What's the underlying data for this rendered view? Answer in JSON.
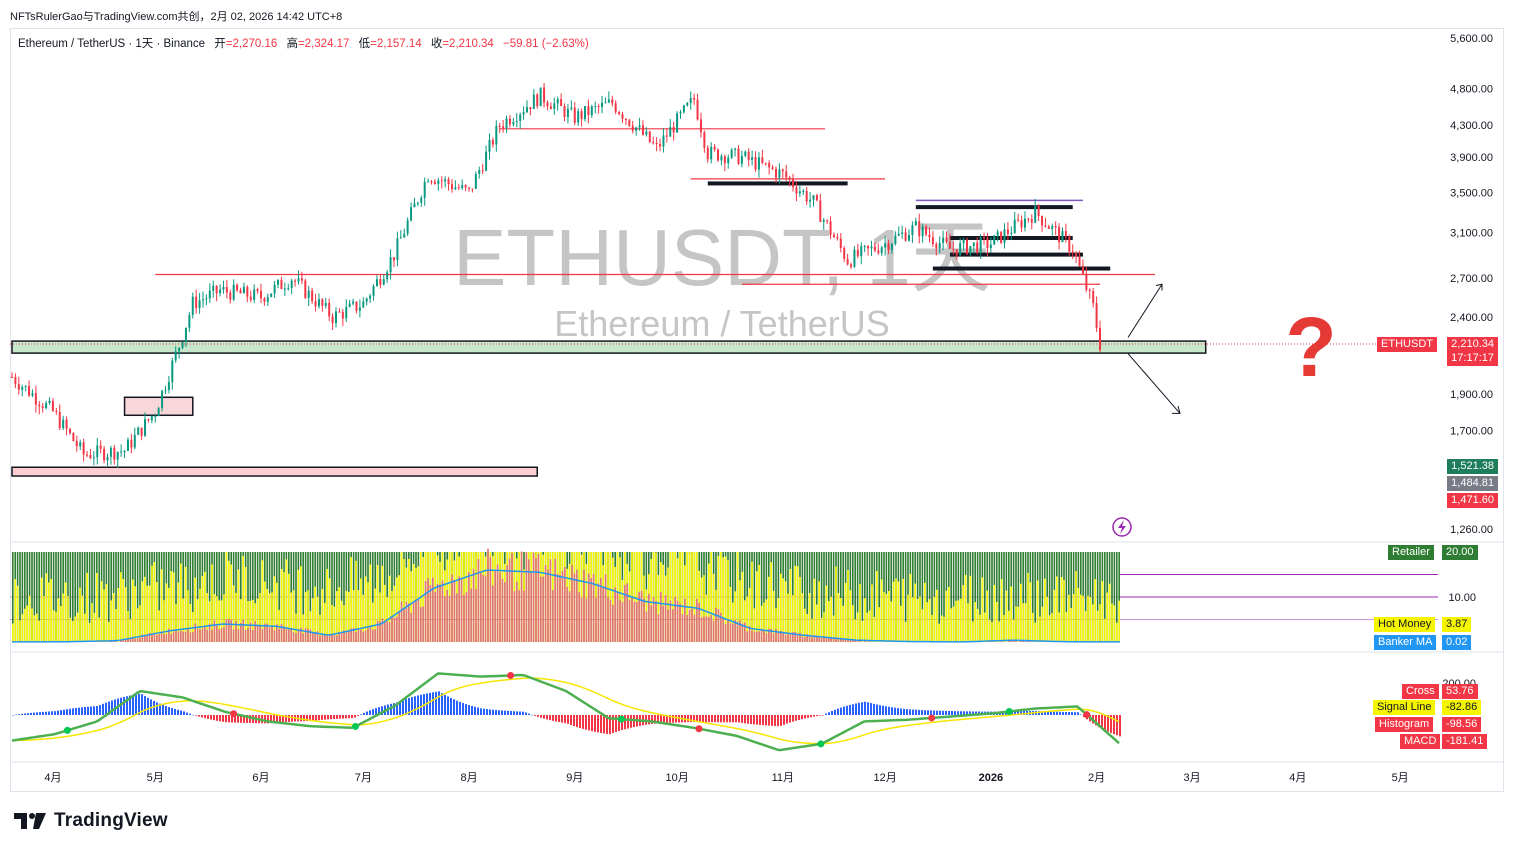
{
  "caption": "NFTsRulerGao与TradingView.com共创，2月 02, 2026 14:42 UTC+8",
  "legend": {
    "symbol": "Ethereum / TetherUS · 1天 · Binance",
    "open_label": "开",
    "open": "=2,270.16",
    "high_label": "高",
    "high": "=2,324.17",
    "low_label": "低",
    "low": "=2,157.14",
    "close_label": "收",
    "close": "=2,210.34",
    "change": "−59.81 (−2.63%)"
  },
  "watermark": {
    "main": "ETHUSDT, 1天",
    "sub": "Ethereum / TetherUS"
  },
  "brand": "TradingView",
  "colors": {
    "up": "#089981",
    "down": "#f23645",
    "zone_green": "#c8e6c9",
    "zone_red": "#ffcdd2",
    "question": "#e53935",
    "retailer": "#2e7d32",
    "hot_money": "#f5f500",
    "banker": "#e57373",
    "banker_ma": "#2196f3"
  },
  "chart_data": [
    {
      "type": "candlestick",
      "title": "",
      "price_axis": [
        "5,600.00",
        "4,800.00",
        "4,300.00",
        "3,900.00",
        "3,500.00",
        "3,100.00",
        "2,700.00",
        "2,400.00",
        "1,900.00",
        "1,700.00",
        "1,260.00"
      ],
      "price_axis_values": [
        5600,
        4800,
        4300,
        3900,
        3500,
        3100,
        2700,
        2400,
        1900,
        1700,
        1260
      ],
      "time_axis": [
        "4月",
        "5月",
        "6月",
        "7月",
        "8月",
        "9月",
        "10月",
        "11月",
        "12月",
        "2026",
        "2月",
        "3月",
        "4月",
        "5月"
      ],
      "scale": "log",
      "grid": false,
      "x": [
        "2025-03-20",
        "2025-04-01",
        "2025-04-10",
        "2025-04-22",
        "2025-05-01",
        "2025-05-08",
        "2025-05-12",
        "2025-05-20",
        "2025-06-01",
        "2025-06-10",
        "2025-06-22",
        "2025-07-01",
        "2025-07-10",
        "2025-07-20",
        "2025-08-01",
        "2025-08-10",
        "2025-08-22",
        "2025-09-01",
        "2025-09-12",
        "2025-09-25",
        "2025-10-01",
        "2025-10-06",
        "2025-10-10",
        "2025-10-20",
        "2025-11-01",
        "2025-11-10",
        "2025-11-20",
        "2025-12-01",
        "2025-12-10",
        "2025-12-20",
        "2026-01-01",
        "2026-01-14",
        "2026-01-25",
        "2026-01-31",
        "2026-02-02"
      ],
      "close": [
        2000,
        1800,
        1580,
        1600,
        1800,
        2200,
        2500,
        2600,
        2550,
        2700,
        2400,
        2500,
        2900,
        3700,
        3500,
        4300,
        4700,
        4400,
        4600,
        4000,
        4350,
        4650,
        3950,
        3900,
        3700,
        3400,
        2850,
        3000,
        3150,
        2950,
        3000,
        3300,
        2950,
        2470,
        2210.34
      ],
      "last_price": "2,210.34",
      "last_price_value": 2210.34,
      "countdown": "17:17:17",
      "symbol_tag": "ETHUSDT",
      "extra_prices": [
        {
          "label": "1,521.38",
          "value": 1521.38,
          "color": "#1e7d5a"
        },
        {
          "label": "1,484.81",
          "value": 1484.81,
          "color": "#787b86"
        },
        {
          "label": "1,471.60",
          "value": 1471.6,
          "color": "#f23645"
        }
      ],
      "zones": [
        {
          "kind": "support",
          "low": 2150,
          "high": 2230,
          "from": "2025-03-20",
          "to": "2026-03-05"
        },
        {
          "kind": "support",
          "low": 1480,
          "high": 1520,
          "from": "2025-03-20",
          "to": "2025-08-21"
        },
        {
          "kind": "box",
          "low": 1780,
          "high": 1880,
          "from": "2025-04-22",
          "to": "2025-05-12"
        }
      ],
      "levels": [
        2650,
        2750,
        2800,
        2900,
        3050,
        3350,
        3600,
        4250
      ],
      "annotation": "?",
      "scenarios": [
        "up",
        "down"
      ]
    },
    {
      "type": "histogram",
      "title": "",
      "axis": [
        "10.00"
      ],
      "axis_values": [
        10
      ],
      "labels": [
        {
          "name": "Retailer",
          "value": "20.00"
        },
        {
          "name": "Hot Money",
          "value": "3.87"
        },
        {
          "name": "Banker MA",
          "value": "0.02"
        }
      ],
      "banker_ma": [
        0.02,
        0.05,
        0.3,
        2.5,
        4.0,
        3.5,
        1.5,
        4.0,
        12.0,
        16.0,
        15.5,
        13.0,
        9.0,
        7.5,
        3.0,
        1.5,
        0.4,
        0.1,
        0.02,
        0.4,
        0.05,
        0.02
      ]
    },
    {
      "type": "line",
      "title": "",
      "axis": [
        "200.00"
      ],
      "axis_values": [
        200
      ],
      "labels": [
        {
          "name": "Cross",
          "value": "53.76"
        },
        {
          "name": "Signal Line",
          "value": "-82.86"
        },
        {
          "name": "Histogram",
          "value": "-98.56"
        },
        {
          "name": "MACD",
          "value": "-181.41"
        }
      ],
      "macd": [
        -160,
        -120,
        -40,
        150,
        110,
        20,
        -40,
        -70,
        -80,
        60,
        260,
        240,
        250,
        150,
        -20,
        -40,
        -80,
        -130,
        -220,
        -180,
        -40,
        -30,
        -10,
        10,
        40,
        53.76,
        -181.41
      ]
    }
  ]
}
